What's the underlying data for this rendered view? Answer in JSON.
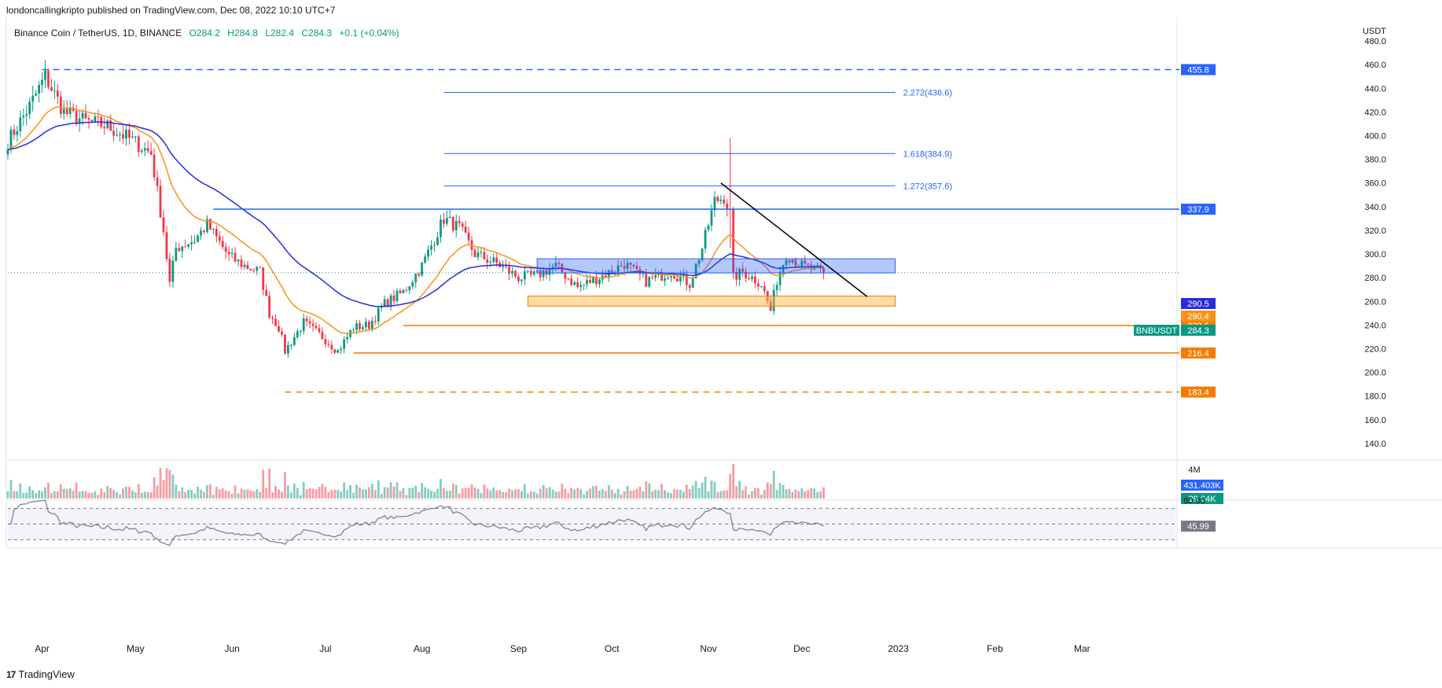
{
  "header": {
    "publisher": "londoncallingkripto published on TradingView.com, Dec 08, 2022 10:10 UTC+7"
  },
  "symbol_bar": {
    "name": "Binance Coin / TetherUS, 1D, BINANCE",
    "open": "O284.2",
    "high": "H284.8",
    "low": "L282.4",
    "close": "C284.3",
    "change": "+0.1 (+0.04%)"
  },
  "footer": {
    "brand": "TradingView",
    "logo_text": "17"
  },
  "colors": {
    "up": "#089981",
    "down": "#f23645",
    "ema_fast": "#f7931a",
    "ema_slow": "#2a2ae0",
    "level": "#2962ff",
    "support": "#f57c00",
    "rsi": "#7e57c2"
  },
  "chart_data": {
    "type": "candlestick",
    "currency_label": "USDT",
    "y_ticks": [
      140.0,
      160.0,
      180.0,
      200.0,
      220.0,
      240.0,
      260.0,
      280.0,
      300.0,
      320.0,
      340.0,
      360.0,
      380.0,
      400.0,
      420.0,
      440.0,
      460.0,
      480.0
    ],
    "y_tick_labels": [
      "140.0",
      "160.0",
      "180.0",
      "200.0",
      "220.0",
      "240.0",
      "260.0",
      "280.0",
      "300.0",
      "320.0",
      "340.0",
      "360.0",
      "380.0",
      "400.0",
      "420.0",
      "440.0",
      "460.0",
      "480.0"
    ],
    "ylim": [
      126,
      500
    ],
    "x_labels": [
      "Apr",
      "May",
      "Jun",
      "Jul",
      "Aug",
      "Sep",
      "Oct",
      "Nov",
      "Dec",
      "2023",
      "Feb",
      "Mar"
    ],
    "x_label_dates": [
      "2022-04-01",
      "2022-05-01",
      "2022-06-01",
      "2022-07-01",
      "2022-08-01",
      "2022-09-01",
      "2022-10-01",
      "2022-11-01",
      "2022-12-01",
      "2023-01-01",
      "2023-02-01",
      "2023-03-01"
    ],
    "xlim": [
      "2022-03-21",
      "2023-03-31"
    ],
    "close_series": {
      "anchor_dates": [
        "2022-03-21",
        "2022-03-28",
        "2022-04-02",
        "2022-04-08",
        "2022-04-15",
        "2022-04-22",
        "2022-04-30",
        "2022-05-06",
        "2022-05-10",
        "2022-05-12",
        "2022-05-14",
        "2022-05-20",
        "2022-05-24",
        "2022-05-31",
        "2022-06-05",
        "2022-06-10",
        "2022-06-13",
        "2022-06-16",
        "2022-06-18",
        "2022-06-24",
        "2022-06-30",
        "2022-07-05",
        "2022-07-10",
        "2022-07-15",
        "2022-07-20",
        "2022-07-26",
        "2022-08-01",
        "2022-08-08",
        "2022-08-13",
        "2022-08-18",
        "2022-08-25",
        "2022-09-01",
        "2022-09-07",
        "2022-09-13",
        "2022-09-20",
        "2022-09-30",
        "2022-10-05",
        "2022-10-12",
        "2022-10-20",
        "2022-10-26",
        "2022-10-30",
        "2022-11-03",
        "2022-11-06",
        "2022-11-08",
        "2022-11-09",
        "2022-11-12",
        "2022-11-18",
        "2022-11-21",
        "2022-11-23",
        "2022-11-26",
        "2022-12-01",
        "2022-12-08"
      ],
      "anchor_values": [
        395,
        425,
        450,
        420,
        412,
        408,
        396,
        385,
        320,
        275,
        305,
        312,
        325,
        298,
        290,
        285,
        250,
        238,
        218,
        242,
        230,
        218,
        238,
        240,
        258,
        268,
        290,
        330,
        322,
        300,
        292,
        280,
        282,
        290,
        272,
        284,
        292,
        277,
        285,
        275,
        305,
        345,
        348,
        334,
        280,
        285,
        275,
        252,
        278,
        300,
        290,
        284.3
      ]
    },
    "ema_fast": {
      "name": "",
      "span": 20
    },
    "ema_slow": {
      "name": "",
      "span": 50
    },
    "spike": {
      "date": "2022-11-08",
      "high": 398,
      "low": 305
    },
    "horizontal_levels": [
      {
        "value": 455.8,
        "label": "455.8",
        "style": "dashed",
        "color": "#2962ff",
        "from": "2022-04-01"
      },
      {
        "value": 337.9,
        "label": "337.9",
        "style": "solid",
        "color": "#2962ff",
        "from": "2022-05-26"
      },
      {
        "value": 239.6,
        "label": "239.6",
        "style": "solid",
        "color": "#f57c00",
        "from": "2022-07-26"
      },
      {
        "value": 216.4,
        "label": "216.4",
        "style": "solid",
        "color": "#f57c00",
        "from": "2022-07-10"
      },
      {
        "value": 183.4,
        "label": "183.4",
        "style": "dashed",
        "color": "#f57c00",
        "from": "2022-06-18"
      }
    ],
    "price_tags": [
      {
        "value": 290.5,
        "label": "290.5",
        "color": "#2a2ae0"
      },
      {
        "value": 290.4,
        "label": "290.4",
        "color": "#f7931a"
      },
      {
        "value": 284.3,
        "label": "284.3",
        "color": "#089981",
        "symbol": "BNBUSDT"
      }
    ],
    "fib_levels": [
      {
        "value": 436.6,
        "label": "2.272(436.6)"
      },
      {
        "value": 384.9,
        "label": "1.618(384.9)"
      },
      {
        "value": 357.6,
        "label": "1.272(357.6)"
      }
    ],
    "fib_range": [
      "2022-08-08",
      "2022-12-31"
    ],
    "zones": [
      {
        "from": "2022-09-07",
        "to": "2022-12-31",
        "low": 284,
        "high": 296,
        "color": "blue"
      },
      {
        "from": "2022-09-04",
        "to": "2022-12-31",
        "low": 256,
        "high": 264.5,
        "color": "orange"
      }
    ],
    "trendline": {
      "from": {
        "date": "2022-11-05",
        "value": 360
      },
      "to": {
        "date": "2022-12-22",
        "value": 264
      }
    },
    "volume": {
      "top_label": "4M",
      "tags": [
        {
          "label": "431.403K",
          "color": "#2962ff"
        },
        {
          "label": "29.64K",
          "color": "#089981"
        }
      ]
    },
    "rsi": {
      "levels": [
        80,
        50,
        20
      ],
      "tick_label": "80.00",
      "current": 45.99,
      "current_label": "45.99"
    }
  }
}
